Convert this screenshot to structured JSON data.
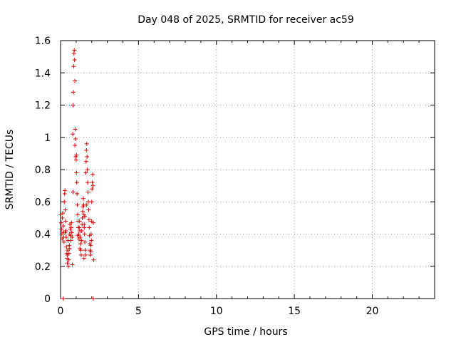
{
  "chart_data": {
    "type": "scatter",
    "title": "Day 048 of 2025, SRMTID for receiver ac59",
    "xlabel": "GPS time / hours",
    "ylabel": "SRMTID / TECUs",
    "xlim": [
      0,
      24
    ],
    "ylim": [
      0,
      1.6
    ],
    "x_ticks": [
      0,
      5,
      10,
      15,
      20
    ],
    "x_tick_labels": [
      "0",
      "5",
      "10",
      "15",
      "20"
    ],
    "y_ticks": [
      0,
      0.2,
      0.4,
      0.6,
      0.8,
      1.0,
      1.2,
      1.4,
      1.6
    ],
    "y_tick_labels": [
      "0",
      "0.2",
      "0.4",
      "0.6",
      "0.8",
      "1",
      "1.2",
      "1.4",
      "1.6"
    ],
    "grid": true,
    "marker": "+",
    "color": "#dd0000",
    "series": [
      {
        "name": "ac59",
        "points": [
          [
            0.02,
            0.52
          ],
          [
            0.04,
            0.47
          ],
          [
            0.06,
            0.43
          ],
          [
            0.08,
            0.4
          ],
          [
            0.1,
            0.37
          ],
          [
            0.12,
            0.5
          ],
          [
            0.14,
            0.53
          ],
          [
            0.16,
            0.45
          ],
          [
            0.18,
            0.41
          ],
          [
            0.2,
            0.38
          ],
          [
            0.22,
            0.35
          ],
          [
            0.24,
            0.6
          ],
          [
            0.26,
            0.65
          ],
          [
            0.28,
            0.67
          ],
          [
            0.3,
            0.55
          ],
          [
            0.32,
            0.48
          ],
          [
            0.34,
            0.42
          ],
          [
            0.36,
            0.38
          ],
          [
            0.38,
            0.32
          ],
          [
            0.4,
            0.28
          ],
          [
            0.42,
            0.25
          ],
          [
            0.44,
            0.22
          ],
          [
            0.46,
            0.3
          ],
          [
            0.48,
            0.36
          ],
          [
            0.5,
            0.2
          ],
          [
            0.52,
            0.24
          ],
          [
            0.54,
            0.28
          ],
          [
            0.56,
            0.33
          ],
          [
            0.58,
            0.4
          ],
          [
            0.6,
            0.46
          ],
          [
            0.62,
            0.43
          ],
          [
            0.64,
            0.39
          ],
          [
            0.66,
            0.36
          ],
          [
            0.68,
            0.44
          ],
          [
            0.7,
            0.47
          ],
          [
            0.72,
            0.41
          ],
          [
            0.74,
            0.38
          ],
          [
            0.76,
            0.21
          ],
          [
            0.78,
            1.02
          ],
          [
            0.8,
            1.2
          ],
          [
            0.82,
            1.28
          ],
          [
            0.84,
            1.44
          ],
          [
            0.86,
            1.52
          ],
          [
            0.88,
            1.54
          ],
          [
            0.9,
            1.48
          ],
          [
            0.92,
            1.35
          ],
          [
            0.94,
            1.05
          ],
          [
            0.96,
            0.99
          ],
          [
            0.98,
            0.88
          ],
          [
            1.0,
            0.86
          ],
          [
            1.02,
            0.78
          ],
          [
            1.04,
            0.72
          ],
          [
            1.06,
            0.65
          ],
          [
            1.08,
            0.58
          ],
          [
            1.1,
            0.52
          ],
          [
            1.12,
            0.48
          ],
          [
            1.14,
            0.44
          ],
          [
            1.16,
            0.4
          ],
          [
            1.18,
            0.37
          ],
          [
            1.2,
            0.44
          ],
          [
            1.22,
            0.48
          ],
          [
            1.24,
            0.42
          ],
          [
            1.26,
            0.38
          ],
          [
            1.28,
            0.34
          ],
          [
            1.3,
            0.3
          ],
          [
            1.32,
            0.27
          ],
          [
            1.34,
            0.36
          ],
          [
            1.36,
            0.42
          ],
          [
            1.38,
            0.46
          ],
          [
            1.4,
            0.5
          ],
          [
            1.42,
            0.54
          ],
          [
            1.44,
            0.57
          ],
          [
            1.46,
            0.62
          ],
          [
            1.48,
            0.58
          ],
          [
            1.5,
            0.52
          ],
          [
            1.52,
            0.46
          ],
          [
            1.54,
            0.4
          ],
          [
            1.56,
            0.35
          ],
          [
            1.58,
            0.3
          ],
          [
            1.6,
            0.27
          ],
          [
            1.62,
            0.78
          ],
          [
            1.64,
            0.85
          ],
          [
            1.66,
            0.92
          ],
          [
            1.68,
            0.96
          ],
          [
            1.7,
            0.88
          ],
          [
            1.72,
            0.8
          ],
          [
            1.74,
            0.72
          ],
          [
            1.76,
            0.66
          ],
          [
            1.78,
            0.6
          ],
          [
            1.8,
            0.55
          ],
          [
            1.82,
            0.49
          ],
          [
            1.84,
            0.44
          ],
          [
            1.86,
            0.39
          ],
          [
            1.88,
            0.34
          ],
          [
            1.9,
            0.3
          ],
          [
            1.92,
            0.27
          ],
          [
            1.94,
            0.33
          ],
          [
            1.96,
            0.4
          ],
          [
            1.98,
            0.48
          ],
          [
            2.0,
            0.6
          ],
          [
            2.02,
            0.68
          ],
          [
            2.04,
            0.72
          ],
          [
            2.06,
            0.77
          ],
          [
            2.08,
            0.7
          ],
          [
            2.1,
            0.47
          ],
          [
            2.12,
            0.24
          ],
          [
            0.92,
            0.95
          ],
          [
            1.02,
            0.89
          ],
          [
            0.8,
            0.66
          ],
          [
            1.24,
            0.31
          ],
          [
            1.1,
            0.39
          ],
          [
            0.58,
            0.31
          ],
          [
            0.44,
            0.27
          ],
          [
            1.5,
            0.25
          ],
          [
            1.66,
            0.58
          ],
          [
            1.52,
            0.44
          ],
          [
            1.56,
            0.51
          ],
          [
            1.94,
            0.29
          ],
          [
            1.98,
            0.36
          ],
          [
            0.3,
            0.41
          ],
          [
            0.18,
            0.0
          ],
          [
            2.1,
            0.0
          ]
        ]
      }
    ]
  }
}
